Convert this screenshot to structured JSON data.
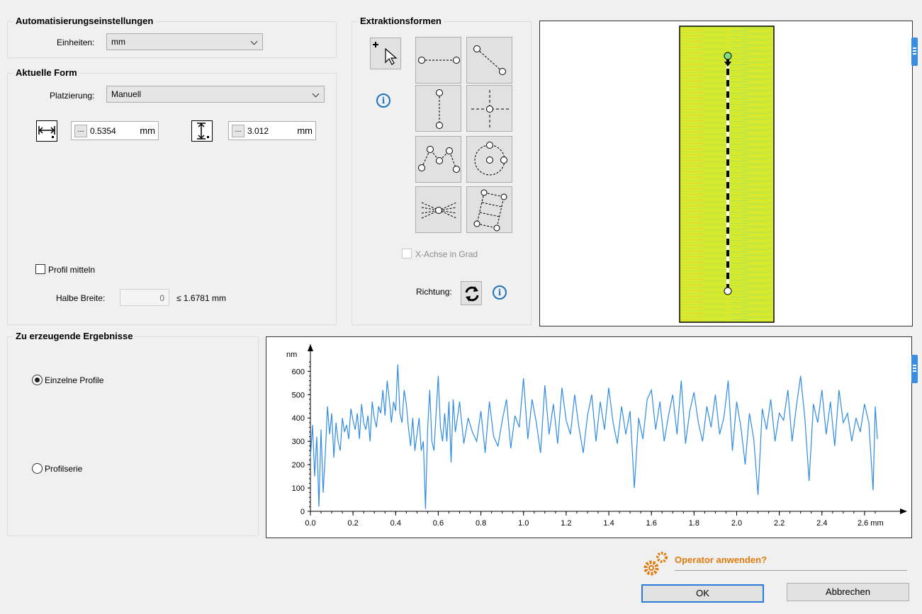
{
  "automation": {
    "title": "Automatisierungseinstellungen",
    "units_label": "Einheiten:",
    "units_value": "mm"
  },
  "current_shape": {
    "title": "Aktuelle Form",
    "placement_label": "Platzierung:",
    "placement_value": "Manuell",
    "width_value": "0.5354",
    "width_unit": "mm",
    "height_value": "3.012",
    "height_unit": "mm",
    "dots_label": "...",
    "profile_average_label": "Profil mitteln",
    "half_width_label": "Halbe Breite:",
    "half_width_value": "0",
    "half_width_max": "≤ 1.6781 mm"
  },
  "extraction": {
    "title": "Extraktionsformen",
    "x_axis_degrees_label": "X-Achse in Grad",
    "direction_label": "Richtung:",
    "info_glyph": "i"
  },
  "results": {
    "title": "Zu erzeugende Ergebnisse",
    "options": [
      "Einzelne Profile",
      "Profilserie"
    ],
    "selected": "Einzelne Profile"
  },
  "footer": {
    "apply_prompt": "Operator anwenden?",
    "ok_label": "OK",
    "cancel_label": "Abbrechen"
  },
  "colors": {
    "accent": "#1e73be",
    "profile_line": "#2f8be3",
    "prompt_orange": "#e07b0c"
  },
  "chart_data": {
    "type": "line",
    "ylabel": "nm",
    "xunit": "mm",
    "xlim": [
      0,
      2.68
    ],
    "ylim": [
      0,
      680
    ],
    "xticks": [
      0.0,
      0.2,
      0.4,
      0.6,
      0.8,
      1.0,
      1.2,
      1.4,
      1.6,
      1.8,
      2.0,
      2.2,
      2.4,
      2.6
    ],
    "xtick_labels": [
      "0.0",
      "0.2",
      "0.4",
      "0.6",
      "0.8",
      "1.0",
      "1.2",
      "1.4",
      "1.6",
      "1.8",
      "2.0",
      "2.2",
      "2.4",
      "2.6 mm"
    ],
    "yticks": [
      0,
      100,
      200,
      300,
      400,
      500,
      600
    ],
    "series": [
      {
        "x": [
          0.0,
          0.01,
          0.02,
          0.03,
          0.04,
          0.05,
          0.06,
          0.07,
          0.08,
          0.09,
          0.1,
          0.11,
          0.12,
          0.13,
          0.14,
          0.15,
          0.16,
          0.17,
          0.18,
          0.19,
          0.2,
          0.21,
          0.22,
          0.23,
          0.24,
          0.25,
          0.26,
          0.27,
          0.28,
          0.29,
          0.3,
          0.31,
          0.32,
          0.33,
          0.34,
          0.35,
          0.36,
          0.37,
          0.38,
          0.39,
          0.4,
          0.41,
          0.42,
          0.43,
          0.44,
          0.45,
          0.46,
          0.47,
          0.48,
          0.49,
          0.5,
          0.51,
          0.52,
          0.53,
          0.54,
          0.55,
          0.56,
          0.57,
          0.58,
          0.59,
          0.6,
          0.61,
          0.62,
          0.63,
          0.64,
          0.65,
          0.66,
          0.67,
          0.68,
          0.69,
          0.7,
          0.72,
          0.74,
          0.76,
          0.78,
          0.8,
          0.82,
          0.84,
          0.86,
          0.88,
          0.9,
          0.92,
          0.94,
          0.96,
          0.98,
          1.0,
          1.02,
          1.04,
          1.06,
          1.08,
          1.1,
          1.12,
          1.14,
          1.16,
          1.18,
          1.2,
          1.22,
          1.24,
          1.26,
          1.28,
          1.3,
          1.32,
          1.34,
          1.36,
          1.38,
          1.4,
          1.42,
          1.44,
          1.46,
          1.48,
          1.5,
          1.52,
          1.54,
          1.56,
          1.58,
          1.6,
          1.62,
          1.64,
          1.66,
          1.68,
          1.7,
          1.72,
          1.74,
          1.76,
          1.78,
          1.8,
          1.82,
          1.84,
          1.86,
          1.88,
          1.9,
          1.92,
          1.94,
          1.96,
          1.98,
          2.0,
          2.02,
          2.04,
          2.06,
          2.08,
          2.1,
          2.12,
          2.14,
          2.16,
          2.18,
          2.2,
          2.22,
          2.24,
          2.26,
          2.28,
          2.3,
          2.32,
          2.34,
          2.36,
          2.38,
          2.4,
          2.42,
          2.44,
          2.46,
          2.48,
          2.5,
          2.52,
          2.54,
          2.56,
          2.58,
          2.6,
          2.62,
          2.64,
          2.65,
          2.66
        ],
        "values": [
          230,
          370,
          150,
          320,
          20,
          350,
          80,
          250,
          450,
          330,
          420,
          230,
          380,
          300,
          260,
          400,
          340,
          370,
          310,
          440,
          390,
          350,
          420,
          310,
          460,
          380,
          350,
          410,
          300,
          470,
          400,
          360,
          450,
          420,
          520,
          410,
          560,
          480,
          380,
          470,
          430,
          630,
          420,
          380,
          520,
          460,
          360,
          280,
          400,
          260,
          330,
          400,
          260,
          300,
          10,
          350,
          520,
          300,
          260,
          420,
          580,
          360,
          300,
          420,
          300,
          470,
          210,
          480,
          340,
          400,
          470,
          290,
          400,
          340,
          300,
          430,
          250,
          470,
          320,
          280,
          390,
          480,
          270,
          410,
          360,
          570,
          310,
          480,
          380,
          250,
          540,
          330,
          460,
          290,
          530,
          390,
          330,
          500,
          360,
          250,
          410,
          500,
          300,
          470,
          350,
          530,
          380,
          290,
          450,
          330,
          430,
          100,
          400,
          310,
          480,
          520,
          350,
          470,
          300,
          410,
          500,
          330,
          560,
          290,
          430,
          510,
          380,
          300,
          450,
          360,
          500,
          330,
          400,
          560,
          260,
          470,
          360,
          200,
          420,
          310,
          70,
          440,
          350,
          480,
          300,
          420,
          390,
          520,
          300,
          450,
          580,
          400,
          130,
          460,
          380,
          520,
          330,
          470,
          280,
          520,
          380,
          420,
          300,
          400,
          340,
          460,
          380,
          90,
          450,
          310
        ]
      }
    ]
  }
}
